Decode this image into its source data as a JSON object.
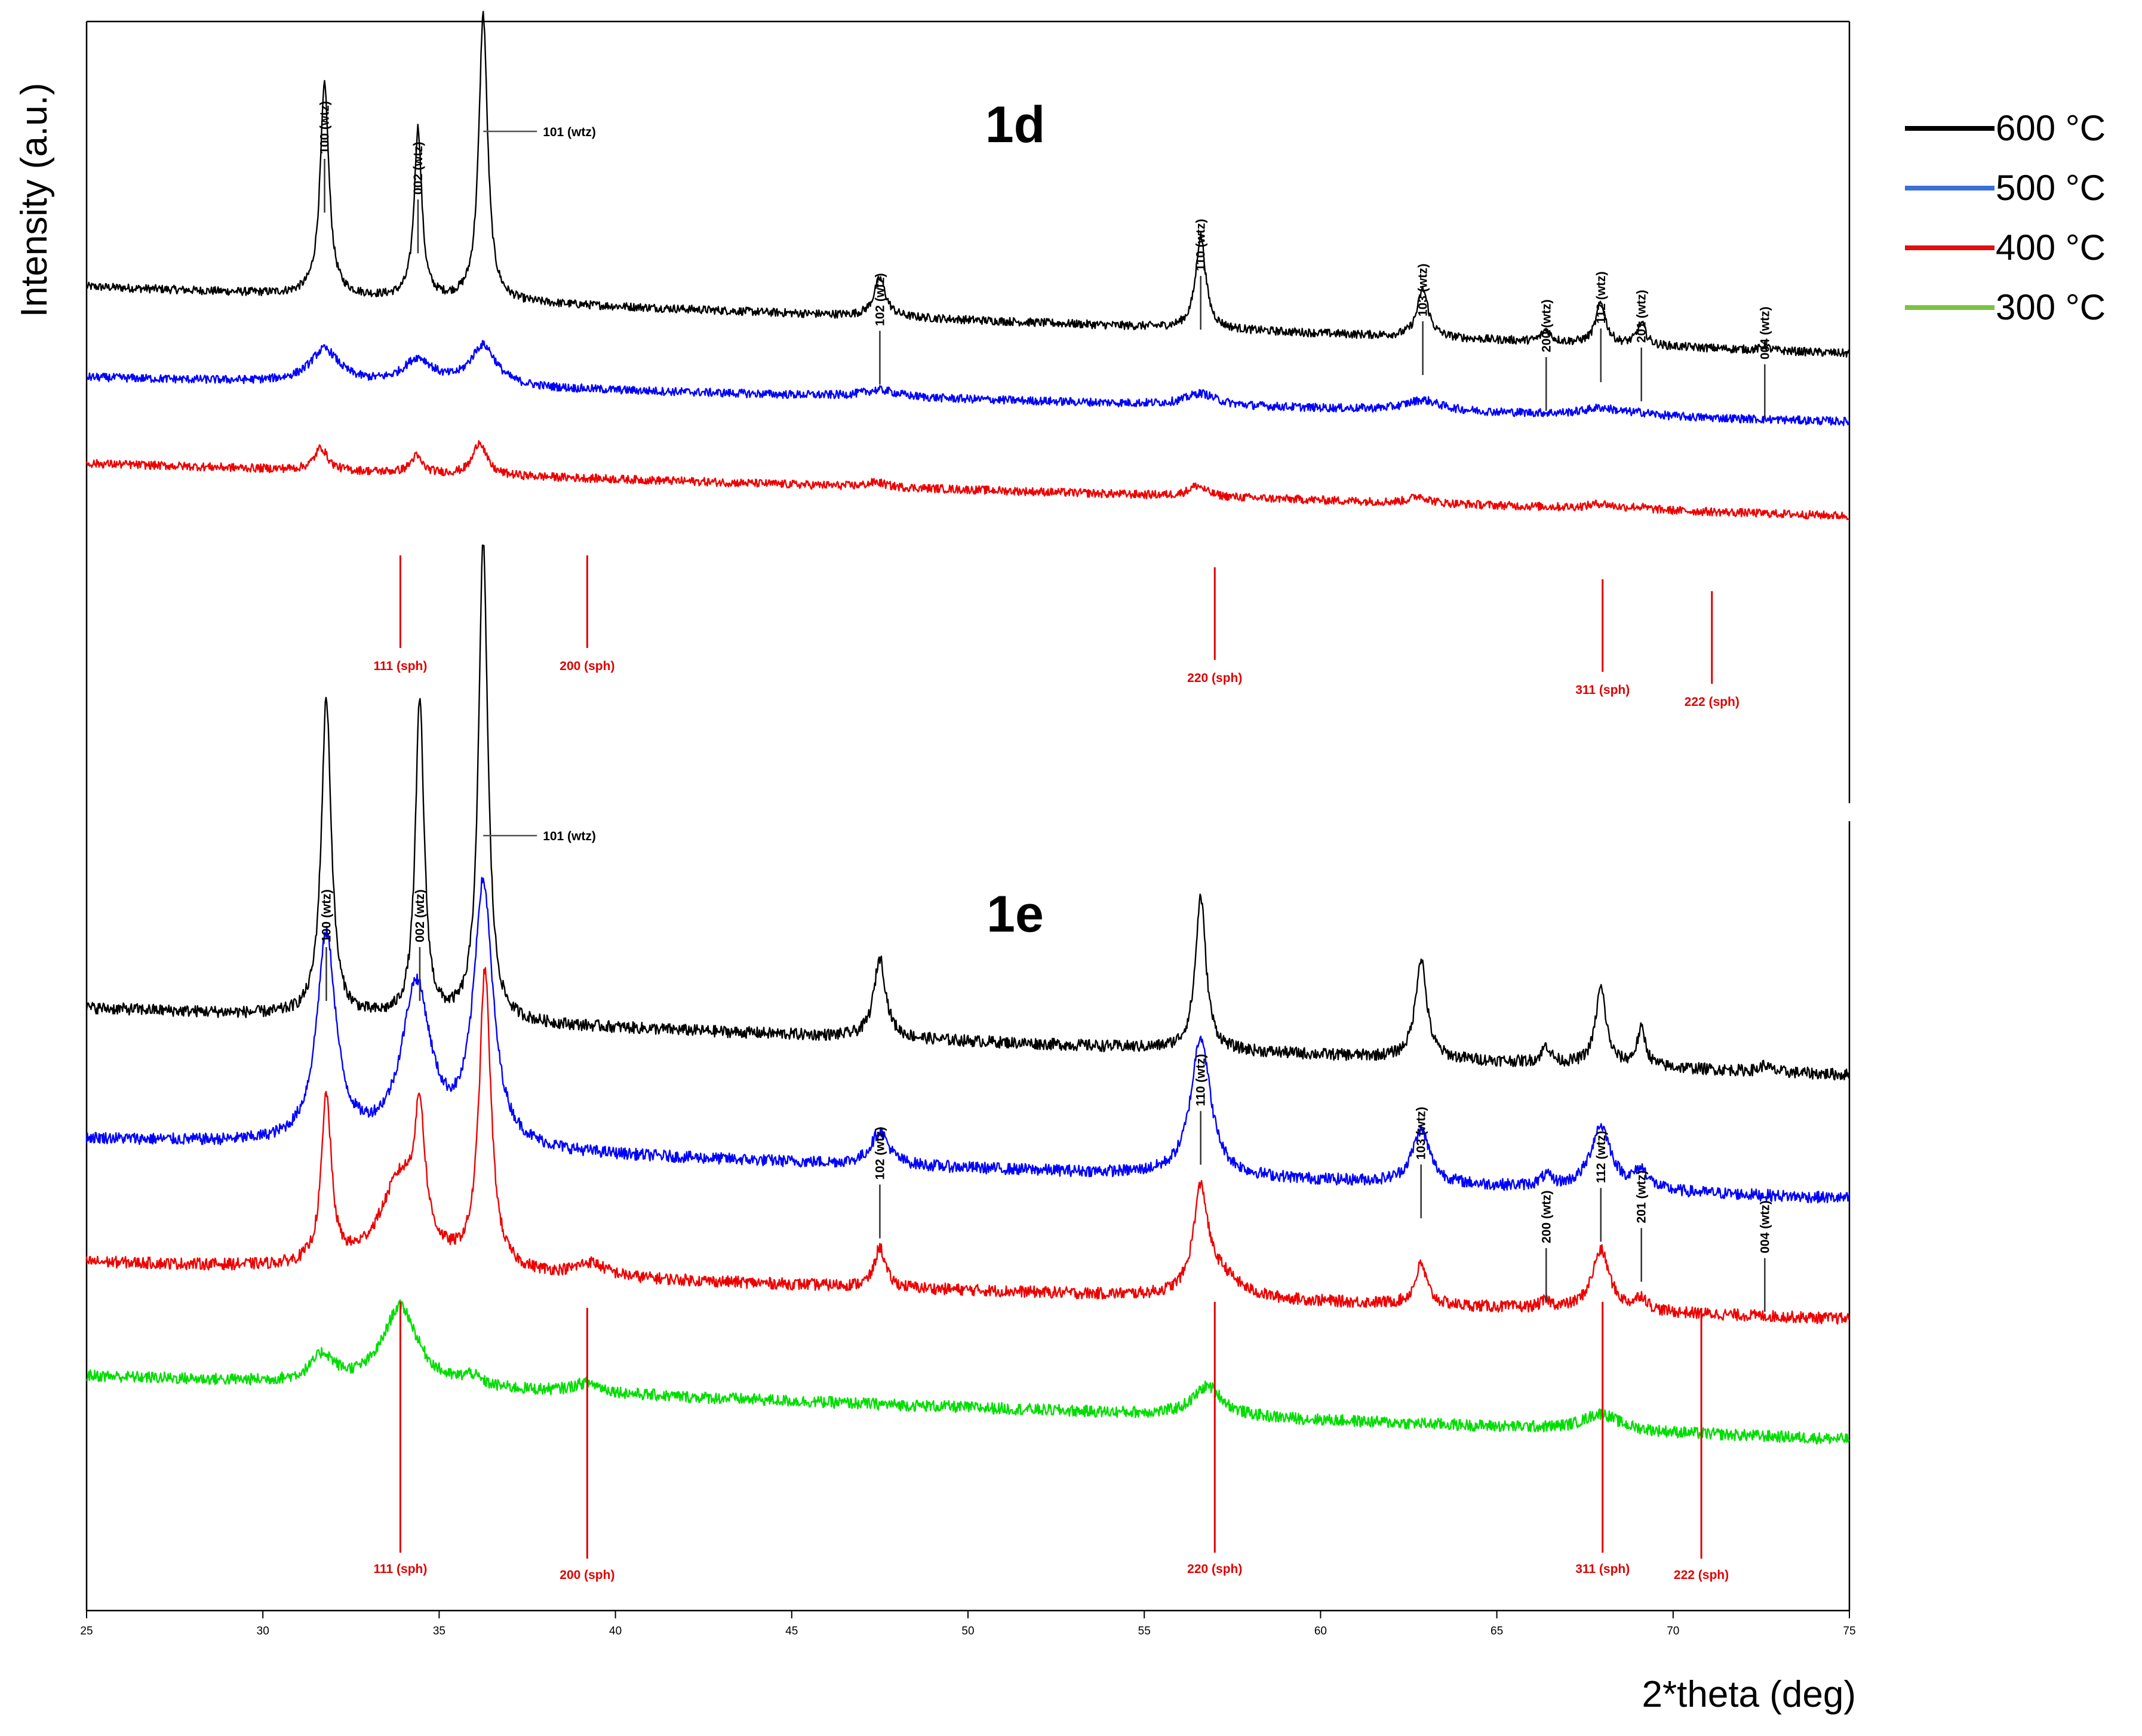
{
  "chart_data": {
    "type": "line",
    "xlabel": "2*theta (deg)",
    "ylabel": "Intensity (a.u.)",
    "xlim": [
      25,
      75
    ],
    "xticks": [
      25,
      30,
      35,
      40,
      45,
      50,
      55,
      60,
      65,
      70,
      75
    ],
    "legend": [
      {
        "label": "600 °C",
        "color": "#000000"
      },
      {
        "label": "500 °C",
        "color": "#3a6fd8"
      },
      {
        "label": "400 °C",
        "color": "#e01010"
      },
      {
        "label": "300 °C",
        "color": "#7cc242"
      }
    ],
    "colors": {
      "600": "#000000",
      "500": "#0000ff",
      "400": "#ee0000",
      "300": "#00dd00",
      "sph": "#e00000"
    },
    "panels": [
      {
        "name": "1d",
        "series": [
          {
            "name": "600 °C",
            "color": "#000000",
            "baseline": [
              6.0,
              3.2
            ],
            "peaks": [
              [
                31.75,
                0.15,
                8.8
              ],
              [
                34.4,
                0.13,
                7.1
              ],
              [
                36.25,
                0.15,
                12.0
              ],
              [
                47.5,
                0.2,
                1.6
              ],
              [
                56.6,
                0.17,
                3.9
              ],
              [
                62.9,
                0.19,
                2.0
              ],
              [
                66.4,
                0.15,
                0.5
              ],
              [
                67.95,
                0.17,
                1.7
              ],
              [
                69.1,
                0.15,
                0.9
              ],
              [
                72.6,
                0.12,
                0.2
              ]
            ]
          },
          {
            "name": "500 °C",
            "color": "#0000ff",
            "baseline": [
              2.2,
              0.35
            ],
            "peaks": [
              [
                31.75,
                0.5,
                1.4
              ],
              [
                34.4,
                0.5,
                1.05
              ],
              [
                36.25,
                0.45,
                1.7
              ],
              [
                47.5,
                0.6,
                0.3
              ],
              [
                56.6,
                0.5,
                0.5
              ],
              [
                62.9,
                0.6,
                0.45
              ],
              [
                67.95,
                0.6,
                0.3
              ],
              [
                69.1,
                0.5,
                0.1
              ]
            ]
          },
          {
            "name": "400 °C",
            "color": "#ee0000",
            "baseline": [
              -1.4,
              -3.6
            ],
            "peaks": [
              [
                31.65,
                0.22,
                0.95
              ],
              [
                34.35,
                0.2,
                0.7
              ],
              [
                36.15,
                0.22,
                1.4
              ],
              [
                47.4,
                0.3,
                0.2
              ],
              [
                56.5,
                0.3,
                0.45
              ],
              [
                62.8,
                0.3,
                0.3
              ],
              [
                67.95,
                0.4,
                0.2
              ],
              [
                69.0,
                0.3,
                0.1
              ]
            ]
          }
        ],
        "wtz_labels": [
          {
            "label": "100 (wtz)",
            "x": 31.75,
            "peak_y": 8.8
          },
          {
            "label": "002 (wtz)",
            "x": 34.4,
            "peak_y": 7.1
          },
          {
            "label": "101 (wtz)",
            "x": 36.25,
            "peak_y": 12.0
          },
          {
            "label": "102 (wtz)",
            "x": 47.5,
            "peak_y": 1.6
          },
          {
            "label": "110 (wtz)",
            "x": 56.6,
            "peak_y": 3.9
          },
          {
            "label": "103 (wtz)",
            "x": 62.9,
            "peak_y": 2.0
          },
          {
            "label": "200 (wtz)",
            "x": 66.4,
            "peak_y": 0.5
          },
          {
            "label": "112 (wtz)",
            "x": 67.95,
            "peak_y": 1.7
          },
          {
            "label": "201 (wtz)",
            "x": 69.1,
            "peak_y": 0.9
          },
          {
            "label": "004 (wtz)",
            "x": 72.6,
            "peak_y": 0.2
          }
        ],
        "sph_labels": [
          {
            "label": "111 (sph)",
            "x": 33.9
          },
          {
            "label": "200 (sph)",
            "x": 39.2
          },
          {
            "label": "220 (sph)",
            "x": 57.0
          },
          {
            "label": "311 (sph)",
            "x": 68.0
          },
          {
            "label": "222 (sph)",
            "x": 71.1
          }
        ]
      },
      {
        "name": "1e",
        "series": [
          {
            "name": "600 °C",
            "color": "#000000",
            "baseline": [
              9.5,
              7.5
            ],
            "peaks": [
              [
                31.8,
                0.17,
                9.5
              ],
              [
                34.45,
                0.15,
                9.5
              ],
              [
                36.25,
                0.16,
                14.3
              ],
              [
                47.5,
                0.2,
                2.4
              ],
              [
                56.6,
                0.18,
                4.6
              ],
              [
                62.85,
                0.19,
                3.0
              ],
              [
                66.4,
                0.15,
                0.5
              ],
              [
                67.95,
                0.18,
                2.3
              ],
              [
                69.1,
                0.15,
                1.1
              ],
              [
                72.6,
                0.15,
                0.2
              ]
            ]
          },
          {
            "name": "500 °C",
            "color": "#0000ff",
            "baseline": [
              5.6,
              3.8
            ],
            "peaks": [
              [
                31.8,
                0.33,
                6.2
              ],
              [
                34.35,
                0.5,
                4.8
              ],
              [
                36.25,
                0.33,
                7.8
              ],
              [
                47.5,
                0.3,
                1.0
              ],
              [
                56.6,
                0.33,
                4.2
              ],
              [
                62.85,
                0.3,
                1.6
              ],
              [
                66.4,
                0.2,
                0.3
              ],
              [
                67.95,
                0.35,
                1.9
              ],
              [
                69.1,
                0.25,
                0.55
              ]
            ]
          },
          {
            "name": "400 °C",
            "color": "#ee0000",
            "baseline": [
              1.9,
              0.2
            ],
            "peaks": [
              [
                31.8,
                0.17,
                5.0
              ],
              [
                33.9,
                0.7,
                2.7
              ],
              [
                34.45,
                0.17,
                3.6
              ],
              [
                36.3,
                0.2,
                8.9
              ],
              [
                39.3,
                0.5,
                0.4
              ],
              [
                47.5,
                0.18,
                1.2
              ],
              [
                56.6,
                0.25,
                3.1
              ],
              [
                57.2,
                0.6,
                0.6
              ],
              [
                62.85,
                0.2,
                1.2
              ],
              [
                66.4,
                0.2,
                0.2
              ],
              [
                67.95,
                0.3,
                1.8
              ],
              [
                69.1,
                0.2,
                0.4
              ]
            ]
          },
          {
            "name": "300 °C",
            "color": "#00dd00",
            "baseline": [
              -1.5,
              -3.4
            ],
            "peaks": [
              [
                31.7,
                0.4,
                0.8
              ],
              [
                33.9,
                0.6,
                2.4
              ],
              [
                35.9,
                0.3,
                0.3
              ],
              [
                39.2,
                0.5,
                0.3
              ],
              [
                56.8,
                0.5,
                0.9
              ],
              [
                67.95,
                0.6,
                0.5
              ]
            ]
          }
        ],
        "wtz_labels": [
          {
            "label": "100 (wtz)",
            "x": 31.8,
            "peak_y": 9.5
          },
          {
            "label": "002 (wtz)",
            "x": 34.45,
            "peak_y": 9.5
          },
          {
            "label": "101 (wtz)",
            "x": 36.25,
            "peak_y": 14.3
          },
          {
            "label": "102 (wtz)",
            "x": 47.5,
            "peak_y": 2.4
          },
          {
            "label": "110 (wtz)",
            "x": 56.6,
            "peak_y": 4.6
          },
          {
            "label": "103 (wtz)",
            "x": 62.85,
            "peak_y": 3.0
          },
          {
            "label": "200 (wtz)",
            "x": 66.4,
            "peak_y": 0.5
          },
          {
            "label": "112 (wtz)",
            "x": 67.95,
            "peak_y": 2.3
          },
          {
            "label": "201 (wtz)",
            "x": 69.1,
            "peak_y": 1.1
          },
          {
            "label": "004 (wtz)",
            "x": 72.6,
            "peak_y": 0.2
          }
        ],
        "sph_labels": [
          {
            "label": "111 (sph)",
            "x": 33.9
          },
          {
            "label": "200 (sph)",
            "x": 39.2
          },
          {
            "label": "220 (sph)",
            "x": 57.0
          },
          {
            "label": "311 (sph)",
            "x": 68.0
          },
          {
            "label": "222 (sph)",
            "x": 70.8
          }
        ]
      }
    ]
  }
}
